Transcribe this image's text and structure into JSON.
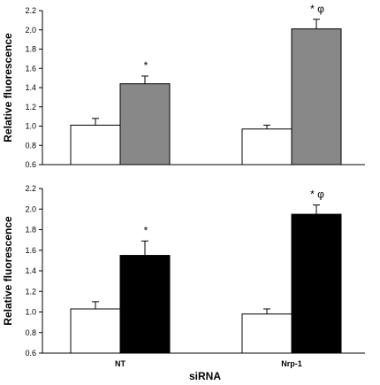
{
  "chart_data": [
    {
      "type": "bar",
      "categories": [
        "",
        ""
      ],
      "series": [
        {
          "values": [
            1.01,
            0.97
          ],
          "colors": [
            "#ffffff",
            "#ffffff"
          ],
          "errors": [
            0.07,
            0.04
          ]
        },
        {
          "values": [
            1.44,
            2.01
          ],
          "colors": [
            "#888888",
            "#888888"
          ],
          "errors": [
            0.08,
            0.1
          ]
        }
      ],
      "annotations": [
        "*",
        "* φ"
      ],
      "ylabel": "Relative fluorescence",
      "xlabel": "",
      "ylim": [
        0.6,
        2.2
      ],
      "yticks": [
        "0.6",
        "0.8",
        "1.0",
        "1.2",
        "1.4",
        "1.6",
        "1.8",
        "2.0",
        "2.2"
      ]
    },
    {
      "type": "bar",
      "categories": [
        "NT",
        "Nrp-1"
      ],
      "series": [
        {
          "values": [
            1.03,
            0.98
          ],
          "colors": [
            "#ffffff",
            "#ffffff"
          ],
          "errors": [
            0.07,
            0.05
          ]
        },
        {
          "values": [
            1.55,
            1.95
          ],
          "colors": [
            "#000000",
            "#000000"
          ],
          "errors": [
            0.14,
            0.09
          ]
        }
      ],
      "annotations": [
        "*",
        "* φ"
      ],
      "ylabel": "Relative fluorescence",
      "xlabel": "siRNA",
      "ylim": [
        0.6,
        2.2
      ],
      "yticks": [
        "0.6",
        "0.8",
        "1.0",
        "1.2",
        "1.4",
        "1.6",
        "1.8",
        "2.0",
        "2.2"
      ]
    }
  ]
}
